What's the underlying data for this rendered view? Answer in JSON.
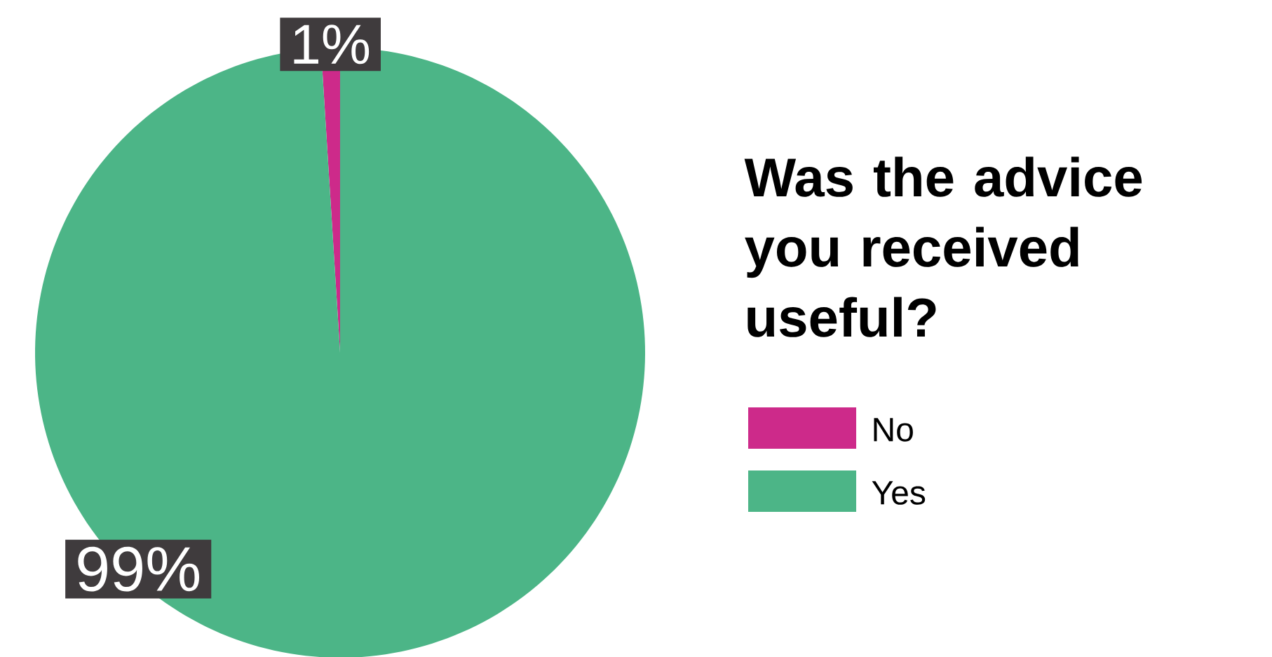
{
  "chart_data": {
    "type": "pie",
    "title": "Was the advice you received useful?",
    "categories": [
      "No",
      "Yes"
    ],
    "values": [
      1,
      99
    ],
    "colors": [
      "#cd2a8a",
      "#4cb587"
    ],
    "value_labels": [
      "1%",
      "99%"
    ],
    "legend": "right"
  }
}
